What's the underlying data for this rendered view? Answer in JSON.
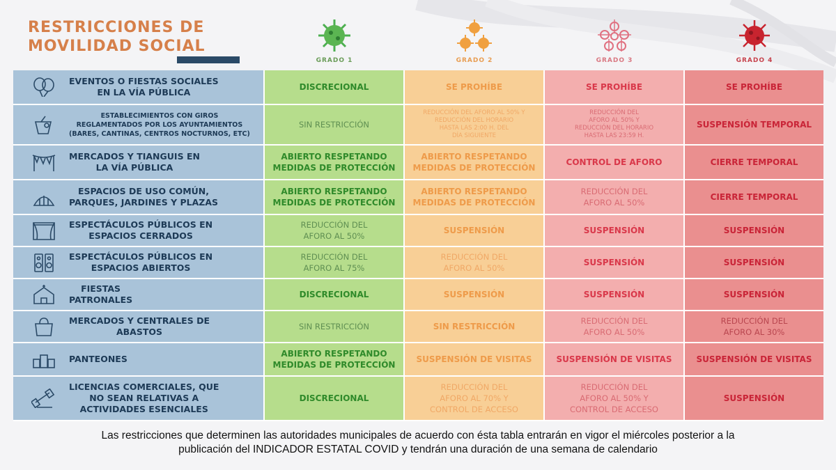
{
  "title": {
    "line1": "RESTRICCIONES DE",
    "line2": "MOVILIDAD SOCIAL"
  },
  "grades": [
    {
      "label": "GRADO 1",
      "color": "#4caf50"
    },
    {
      "label": "GRADO 2",
      "color": "#f0a040"
    },
    {
      "label": "GRADO 3",
      "color": "#e06878"
    },
    {
      "label": "GRADO 4",
      "color": "#c8242f"
    }
  ],
  "rows": [
    {
      "icon": "balloons-icon",
      "cat": [
        "EVENTOS O FIESTAS SOCIALES",
        "EN LA VÍA PÚBLICA"
      ],
      "g1": [
        "DISCRECIONAL"
      ],
      "g2": [
        "SE PROHÍBE"
      ],
      "g3": [
        "SE PROHÍBE"
      ],
      "g4": [
        "SE PROHÍBE"
      ]
    },
    {
      "icon": "drink-icon",
      "cat": [
        "ESTABLECIMIENTOS CON GIROS",
        "REGLAMENTADOS POR LOS AYUNTAMIENTOS",
        "(BARES, CANTINAS, CENTROS NOCTURNOS, ETC)"
      ],
      "g1": [
        "SIN RESTRICCIÓN"
      ],
      "g2": [
        "REDUCCIÓN DEL AFORO AL 50% Y",
        "REDUCCIÓN DEL HORARIO",
        "HASTA LAS 2:00 H. DEL",
        "DÍA SIGUIENTE"
      ],
      "g3": [
        "REDUCCIÓN DEL",
        "AFORO AL 50% Y",
        "REDUCCIÓN DEL HORARIO",
        "HASTA LAS 23:59 H."
      ],
      "g4": [
        "SUSPENSIÓN TEMPORAL"
      ]
    },
    {
      "icon": "bunting-icon",
      "cat": [
        "MERCADOS Y TIANGUIS EN",
        "LA VÍA PÚBLICA"
      ],
      "g1": [
        "ABIERTO RESPETANDO",
        "MEDIDAS DE PROTECCIÓN"
      ],
      "g2": [
        "ABIERTO RESPETANDO",
        "MEDIDAS DE PROTECCIÓN"
      ],
      "g3": [
        "CONTROL DE AFORO"
      ],
      "g4": [
        "CIERRE TEMPORAL"
      ]
    },
    {
      "icon": "park-icon",
      "cat": [
        "ESPACIOS DE USO COMÚN,",
        "PARQUES, JARDINES Y PLAZAS"
      ],
      "g1": [
        "ABIERTO RESPETANDO",
        "MEDIDAS DE PROTECCIÓN"
      ],
      "g2": [
        "ABIERTO RESPETANDO",
        "MEDIDAS DE PROTECCIÓN"
      ],
      "g3": [
        "REDUCCIÓN DEL",
        "AFORO AL 50%"
      ],
      "g4": [
        "CIERRE TEMPORAL"
      ]
    },
    {
      "icon": "theater-icon",
      "cat": [
        "ESPECTÁCULOS PÚBLICOS EN",
        "ESPACIOS CERRADOS"
      ],
      "g1": [
        "REDUCCIÓN DEL",
        "AFORO AL 50%"
      ],
      "g2": [
        "SUSPENSIÓN"
      ],
      "g3": [
        "SUSPENSIÓN"
      ],
      "g4": [
        "SUSPENSIÓN"
      ]
    },
    {
      "icon": "speakers-icon",
      "cat": [
        "ESPECTÁCULOS PÚBLICOS EN",
        "ESPACIOS ABIERTOS"
      ],
      "g1": [
        "REDUCCIÓN DEL",
        "AFORO AL 75%"
      ],
      "g2": [
        "REDUCCIÓN DEL",
        "AFORO AL 50%"
      ],
      "g3": [
        "SUSPENSIÓN"
      ],
      "g4": [
        "SUSPENSIÓN"
      ]
    },
    {
      "icon": "church-icon",
      "cat": [
        "FIESTAS",
        "PATRONALES"
      ],
      "g1": [
        "DISCRECIONAL"
      ],
      "g2": [
        "SUSPENSIÓN"
      ],
      "g3": [
        "SUSPENSIÓN"
      ],
      "g4": [
        "SUSPENSIÓN"
      ]
    },
    {
      "icon": "shopping-bag-icon",
      "cat": [
        "MERCADOS Y  CENTRALES DE",
        "ABASTOS"
      ],
      "g1": [
        "SIN RESTRICCIÓN"
      ],
      "g2": [
        "SIN RESTRICCIÓN"
      ],
      "g3": [
        "REDUCCIÓN DEL",
        "AFORO AL 50%"
      ],
      "g4": [
        "REDUCCIÓN DEL",
        "AFORO AL 30%"
      ]
    },
    {
      "icon": "tombs-icon",
      "cat": [
        "PANTEONES"
      ],
      "g1": [
        "ABIERTO RESPETANDO",
        "MEDIDAS DE PROTECCIÓN"
      ],
      "g2": [
        "SUSPENSIÓN DE VISITAS"
      ],
      "g3": [
        "SUSPENSIÓN DE VISITAS"
      ],
      "g4": [
        "SUSPENSIÓN DE VISITAS"
      ]
    },
    {
      "icon": "gym-icon",
      "cat": [
        "LICENCIAS COMERCIALES, QUE",
        "NO SEAN RELATIVAS A",
        "ACTIVIDADES ESENCIALES"
      ],
      "g1": [
        "DISCRECIONAL"
      ],
      "g2": [
        "REDUCCIÓN DEL",
        "AFORO AL 70% Y",
        "CONTROL DE ACCESO"
      ],
      "g3": [
        "REDUCCIÓN DEL",
        "AFORO AL 50% Y",
        "CONTROL DE ACCESO"
      ],
      "g4": [
        "SUSPENSIÓN"
      ]
    }
  ],
  "footnote": {
    "line1": "Las restricciones que determinen las autoridades municipales de acuerdo con ésta tabla entrarán en vigor el miércoles posterior a la",
    "line2": "publicación del INDICADOR ESTATAL COVID y tendrán una duración de una semana de calendario"
  }
}
